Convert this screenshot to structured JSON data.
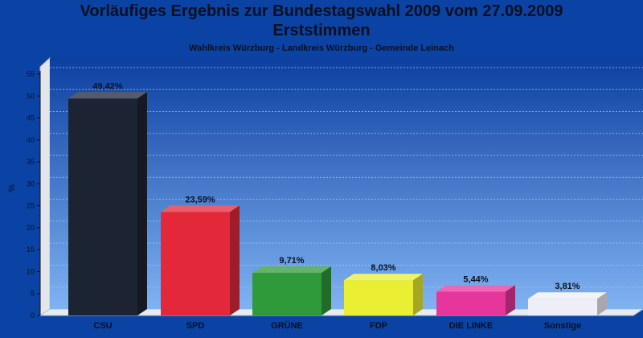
{
  "header": {
    "title_line1": "Vorläufiges Ergebnis zur Bundestagswahl 2009 vom 27.09.2009",
    "title_line2": "Erststimmen",
    "subtitle": "Wahlkreis Würzburg - Landkreis Würzburg - Gemeinde Leinach"
  },
  "chart_data": {
    "type": "bar",
    "title": "Vorläufiges Ergebnis zur Bundestagswahl 2009 vom 27.09.2009 Erststimmen",
    "subtitle": "Wahlkreis Würzburg - Landkreis Würzburg - Gemeinde Leinach",
    "ylabel": "%",
    "xlabel": "",
    "ylim": [
      0,
      55
    ],
    "yticks": [
      0,
      5,
      10,
      15,
      20,
      25,
      30,
      35,
      40,
      45,
      50,
      55
    ],
    "grid": true,
    "legend": "none",
    "categories": [
      "CSU",
      "SPD",
      "GRÜNE",
      "FDP",
      "DIE LINKE",
      "Sonstige"
    ],
    "values": [
      49.42,
      23.59,
      9.71,
      8.03,
      5.44,
      3.81
    ],
    "value_labels": [
      "49,42%",
      "23,59%",
      "9,71%",
      "8,03%",
      "5,44%",
      "3,81%"
    ],
    "colors": [
      "#1c2434",
      "#e3283a",
      "#2f9a3a",
      "#eaef33",
      "#e6369c",
      "#eeeef6"
    ]
  }
}
